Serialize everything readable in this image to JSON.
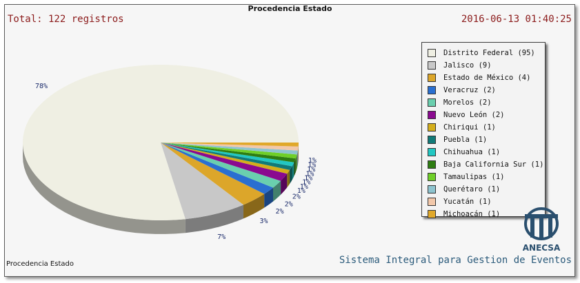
{
  "header": {
    "title": "Procedencia Estado",
    "total": "Total: 122 registros",
    "timestamp": "2016-06-13 01:40:25"
  },
  "footer": {
    "label": "Procedencia Estado",
    "system": "Sistema Integral para Gestion de Eventos"
  },
  "logo": {
    "text": "ANECSA",
    "color": "#2a4f6e"
  },
  "chart_data": {
    "type": "pie",
    "title": "Procedencia Estado",
    "total": 122,
    "legend_position": "right",
    "slices": [
      {
        "label": "Distrito Federal (95)",
        "name": "Distrito Federal",
        "value": 95,
        "pct_label": "78%",
        "color": "#efefe3"
      },
      {
        "label": "Jalisco (9)",
        "name": "Jalisco",
        "value": 9,
        "pct_label": "7%",
        "color": "#c8c8c8"
      },
      {
        "label": "Estado de México (4)",
        "name": "Estado de México",
        "value": 4,
        "pct_label": "3%",
        "color": "#dca62a"
      },
      {
        "label": "Veracruz (2)",
        "name": "Veracruz",
        "value": 2,
        "pct_label": "2%",
        "color": "#2a6fd0"
      },
      {
        "label": "Morelos (2)",
        "name": "Morelos",
        "value": 2,
        "pct_label": "2%",
        "color": "#6acfae"
      },
      {
        "label": "Nuevo León (2)",
        "name": "Nuevo León",
        "value": 2,
        "pct_label": "2%",
        "color": "#8a0a8f"
      },
      {
        "label": "Chiriqui (1)",
        "name": "Chiriqui",
        "value": 1,
        "pct_label": "1%",
        "color": "#d4ae1c"
      },
      {
        "label": "Puebla (1)",
        "name": "Puebla",
        "value": 1,
        "pct_label": "1%",
        "color": "#117a78"
      },
      {
        "label": "Chihuahua (1)",
        "name": "Chihuahua",
        "value": 1,
        "pct_label": "1%",
        "color": "#22c7c2"
      },
      {
        "label": "Baja California Sur (1)",
        "name": "Baja California Sur",
        "value": 1,
        "pct_label": "1%",
        "color": "#2e7d12"
      },
      {
        "label": "Tamaulipas (1)",
        "name": "Tamaulipas",
        "value": 1,
        "pct_label": "1%",
        "color": "#6fcf28"
      },
      {
        "label": "Querétaro (1)",
        "name": "Querétaro",
        "value": 1,
        "pct_label": "1%",
        "color": "#8ec4cf"
      },
      {
        "label": "Yucatán (1)",
        "name": "Yucatán",
        "value": 1,
        "pct_label": "1%",
        "color": "#f2c8aa"
      },
      {
        "label": "Michoacán (1)",
        "name": "Michoacán",
        "value": 1,
        "pct_label": "1%",
        "color": "#e0a82a"
      }
    ]
  }
}
